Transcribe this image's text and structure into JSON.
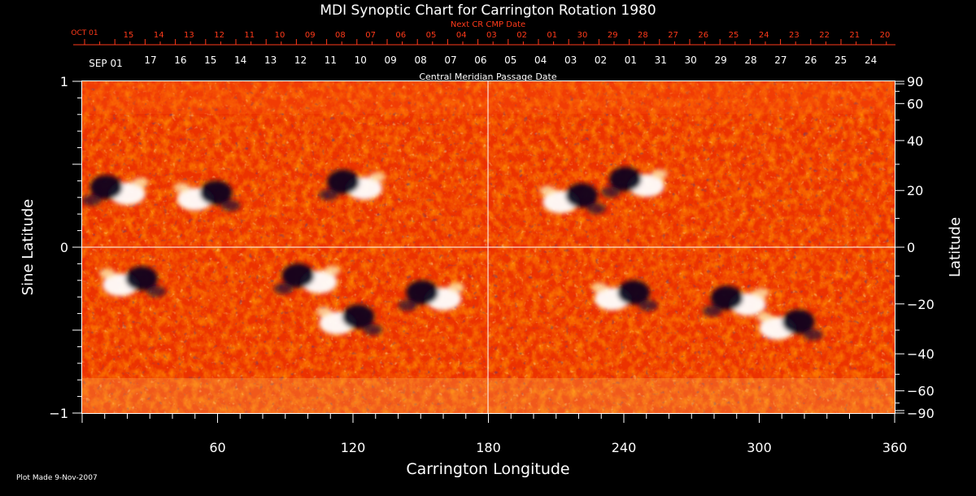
{
  "chart_data": {
    "type": "heatmap",
    "title": "MDI Synoptic Chart for Carrington Rotation 1980",
    "top_red_axis": {
      "title": "Next CR CMP Date",
      "first_label": "OCT 01",
      "labels": [
        "15",
        "14",
        "13",
        "12",
        "11",
        "10",
        "09",
        "08",
        "07",
        "06",
        "05",
        "04",
        "03",
        "02",
        "01",
        "30",
        "29",
        "28",
        "27",
        "26",
        "25",
        "24",
        "23",
        "22",
        "21",
        "20"
      ]
    },
    "top_white_axis": {
      "title": "Central Meridian Passage Date",
      "first_label": "SEP 01",
      "labels": [
        "17",
        "16",
        "15",
        "14",
        "13",
        "12",
        "11",
        "10",
        "09",
        "08",
        "07",
        "06",
        "05",
        "04",
        "03",
        "02",
        "01",
        "31",
        "30",
        "29",
        "28",
        "27",
        "26",
        "25",
        "24"
      ]
    },
    "xlabel": "Carrington Longitude",
    "xlim": [
      0,
      360
    ],
    "xticks": [
      60,
      120,
      180,
      240,
      300,
      360
    ],
    "ylabel": "Sine Latitude",
    "ylim": [
      -1,
      1
    ],
    "yticks": [
      1,
      0,
      -1
    ],
    "y2label": "Latitude",
    "y2ticks": [
      90,
      60,
      40,
      20,
      0,
      -20,
      -40,
      -60,
      -90
    ],
    "colors": {
      "background": "#000000",
      "field_base": "#ff3a00",
      "positive": "#ffffff",
      "negative": "#140a28",
      "red_axis": "#ff3a1a"
    },
    "grid": "center crosshair",
    "active_regions": [
      {
        "lon": 15,
        "lat": 20,
        "polarity": "mixed"
      },
      {
        "lon": 55,
        "lat": 18,
        "polarity": "mixed"
      },
      {
        "lon": 120,
        "lat": 22,
        "polarity": "mixed"
      },
      {
        "lon": 217,
        "lat": 17,
        "polarity": "mixed"
      },
      {
        "lon": 245,
        "lat": 23,
        "polarity": "mixed"
      },
      {
        "lon": 22,
        "lat": -12,
        "polarity": "mixed"
      },
      {
        "lon": 100,
        "lat": -11,
        "polarity": "mixed"
      },
      {
        "lon": 118,
        "lat": -26,
        "polarity": "mixed"
      },
      {
        "lon": 155,
        "lat": -17,
        "polarity": "mixed"
      },
      {
        "lon": 240,
        "lat": -17,
        "polarity": "mixed"
      },
      {
        "lon": 290,
        "lat": -19,
        "polarity": "mixed"
      },
      {
        "lon": 313,
        "lat": -28,
        "polarity": "mixed"
      }
    ]
  },
  "footer": {
    "plot_made": "Plot Made  9-Nov-2007"
  }
}
